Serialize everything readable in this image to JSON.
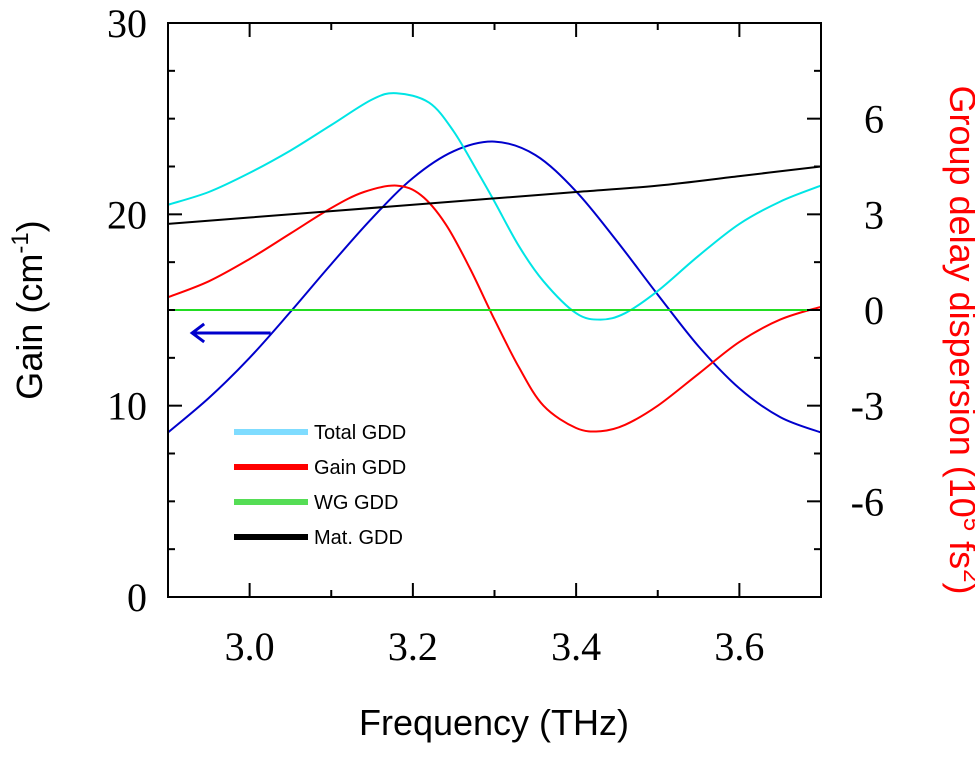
{
  "chart_data": {
    "type": "line",
    "x_axis": {
      "label_text": "Frequency (THz)",
      "range": [
        2.9,
        3.7
      ],
      "ticks": [
        3.0,
        3.2,
        3.4,
        3.6
      ],
      "tick_labels": [
        "3.0",
        "3.2",
        "3.4",
        "3.6"
      ],
      "minor_ticks": [
        2.9,
        3.1,
        3.3,
        3.5,
        3.7
      ]
    },
    "y_left": {
      "label_main": "Gain (cm",
      "label_sup": "-1",
      "label_close": ")",
      "range": [
        0,
        30
      ],
      "ticks": [
        0,
        10,
        20,
        30
      ],
      "tick_labels": [
        "0",
        "10",
        "20",
        "30"
      ],
      "minor_ticks": [
        2.5,
        5,
        7.5,
        12.5,
        15,
        17.5,
        22.5,
        25,
        27.5
      ],
      "color": "#000000"
    },
    "y_right": {
      "label_main": "Group delay dispersion (10",
      "label_sup1": "5",
      "label_mid": " fs",
      "label_sup2": "2",
      "label_close": ")",
      "range": [
        -9,
        9
      ],
      "ticks": [
        -6,
        -3,
        0,
        3,
        6
      ],
      "tick_labels": [
        "-6",
        "-3",
        "0",
        "3",
        "6"
      ],
      "minor_ticks": [
        -7.5,
        -4.5,
        -1.5,
        1.5,
        4.5,
        7.5
      ],
      "color": "#ff0000"
    },
    "arrow": {
      "x": 2.94,
      "y": 13.8,
      "to_x": 2.91,
      "axis": "left",
      "color": "#0000cc"
    },
    "series": [
      {
        "name": "Gain",
        "axis": "left",
        "color": "#0000cc",
        "x": [
          2.9,
          2.95,
          3.0,
          3.05,
          3.1,
          3.15,
          3.2,
          3.25,
          3.3,
          3.35,
          3.4,
          3.45,
          3.5,
          3.55,
          3.6,
          3.65,
          3.7
        ],
        "y": [
          8.6,
          10.4,
          12.5,
          14.9,
          17.4,
          19.8,
          21.9,
          23.3,
          23.8,
          23.1,
          21.2,
          18.6,
          15.8,
          13.1,
          10.9,
          9.4,
          8.6
        ]
      },
      {
        "name": "Total GDD",
        "axis": "right",
        "legend": "Total GDD",
        "color": "#00e5e5",
        "legend_color": "#7fdcff",
        "x": [
          2.9,
          2.95,
          3.0,
          3.05,
          3.1,
          3.15,
          3.18,
          3.22,
          3.25,
          3.28,
          3.3,
          3.33,
          3.36,
          3.4,
          3.43,
          3.46,
          3.5,
          3.55,
          3.6,
          3.65,
          3.7
        ],
        "y": [
          3.3,
          3.7,
          4.3,
          5.0,
          5.8,
          6.6,
          6.8,
          6.5,
          5.6,
          4.3,
          3.4,
          2.0,
          0.9,
          -0.1,
          -0.3,
          -0.1,
          0.6,
          1.7,
          2.7,
          3.4,
          3.9
        ]
      },
      {
        "name": "Gain GDD",
        "axis": "right",
        "legend": "Gain GDD",
        "color": "#ff0000",
        "legend_color": "#ff0000",
        "x": [
          2.9,
          2.95,
          3.0,
          3.05,
          3.1,
          3.14,
          3.18,
          3.21,
          3.24,
          3.27,
          3.3,
          3.33,
          3.36,
          3.4,
          3.43,
          3.46,
          3.5,
          3.55,
          3.6,
          3.65,
          3.7
        ],
        "y": [
          0.4,
          0.9,
          1.6,
          2.4,
          3.2,
          3.7,
          3.9,
          3.6,
          2.7,
          1.3,
          -0.3,
          -1.8,
          -3.0,
          -3.7,
          -3.8,
          -3.6,
          -3.0,
          -2.0,
          -1.0,
          -0.3,
          0.1
        ]
      },
      {
        "name": "WG GDD",
        "axis": "right",
        "legend": "WG GDD",
        "color": "#22dd22",
        "legend_color": "#55dd55",
        "x": [
          2.9,
          3.7
        ],
        "y": [
          0.0,
          0.0
        ]
      },
      {
        "name": "Mat. GDD",
        "axis": "right",
        "legend": "Mat. GDD",
        "color": "#000000",
        "legend_color": "#000000",
        "x": [
          2.9,
          3.0,
          3.1,
          3.2,
          3.3,
          3.4,
          3.5,
          3.6,
          3.7
        ],
        "y": [
          2.7,
          2.9,
          3.1,
          3.3,
          3.5,
          3.7,
          3.9,
          4.2,
          4.5
        ]
      }
    ],
    "legend_position": "lower-left",
    "grid": false
  }
}
